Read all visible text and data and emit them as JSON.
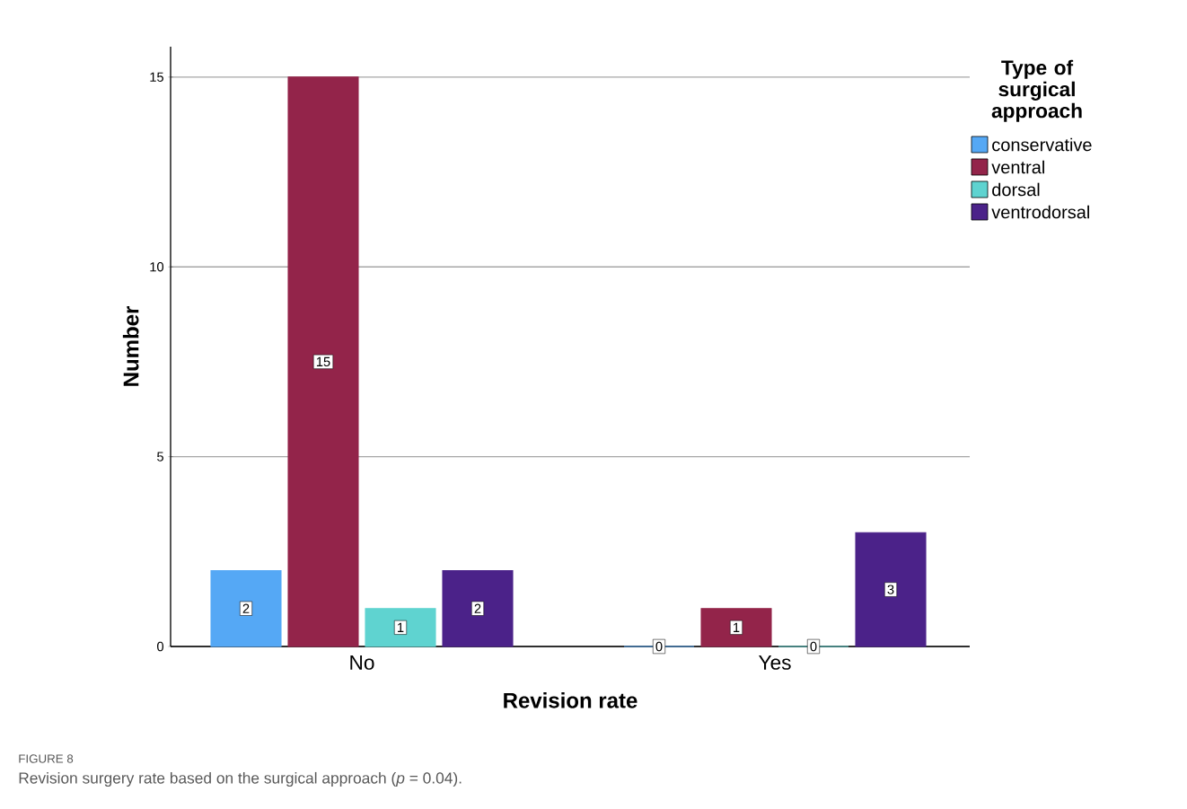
{
  "chart_data": {
    "type": "bar",
    "xlabel": "Revision rate",
    "ylabel": "Number",
    "legend_title": "Type of surgical approach",
    "categories": [
      "No",
      "Yes"
    ],
    "series": [
      {
        "name": "conservative",
        "color": "#55a8f5",
        "values": [
          2,
          0
        ]
      },
      {
        "name": "ventral",
        "color": "#93244a",
        "values": [
          15,
          1
        ]
      },
      {
        "name": "dorsal",
        "color": "#5fd3d0",
        "values": [
          1,
          0
        ]
      },
      {
        "name": "ventrodorsal",
        "color": "#4b2289",
        "values": [
          2,
          3
        ]
      }
    ],
    "ylim": [
      0,
      15.8
    ],
    "yticks": [
      0,
      5,
      10,
      15
    ],
    "grid": "y",
    "legend": "right",
    "data_labels": true,
    "annotations": [
      "FIGURE 8",
      "Revision surgery rate based on the surgical approach (*p* = 0.04)."
    ]
  }
}
